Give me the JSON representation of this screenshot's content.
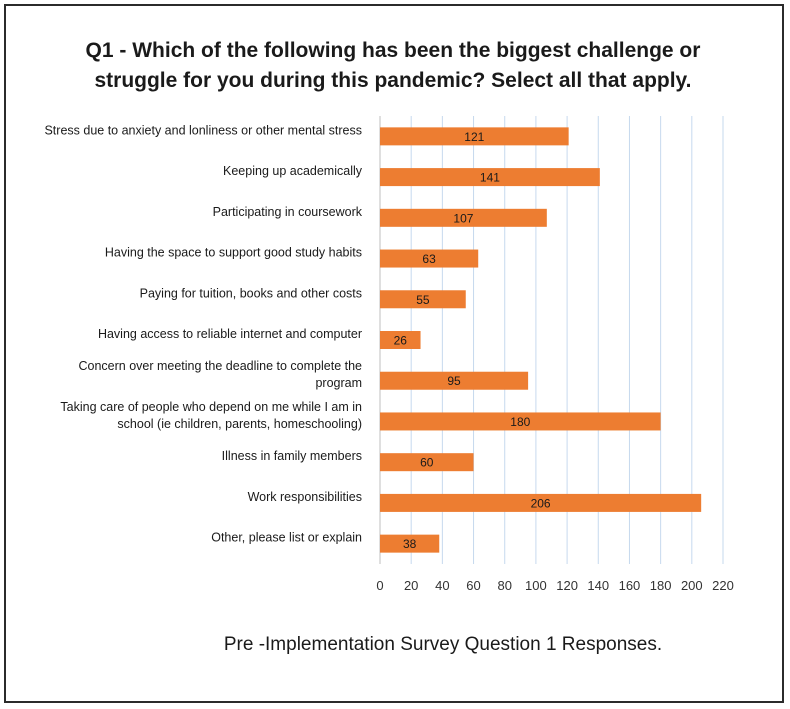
{
  "chart_data": {
    "type": "bar",
    "orientation": "horizontal",
    "title_lines": [
      "Q1 - Which of the following has been the biggest challenge or",
      "struggle for you during this pandemic? Select all that apply."
    ],
    "categories": [
      [
        "Stress due to anxiety and lonliness or other mental stress"
      ],
      [
        "Keeping up academically"
      ],
      [
        "Participating in coursework"
      ],
      [
        "Having the space to support good study habits"
      ],
      [
        "Paying for tuition, books and other costs"
      ],
      [
        "Having access to reliable internet and computer"
      ],
      [
        "Concern over meeting the deadline to complete the",
        "program"
      ],
      [
        "Taking care of people who depend on me while I am in",
        "school (ie children, parents, homeschooling)"
      ],
      [
        "Illness in family members"
      ],
      [
        "Work responsibilities"
      ],
      [
        "Other, please list or explain"
      ]
    ],
    "values": [
      121,
      141,
      107,
      63,
      55,
      26,
      95,
      180,
      60,
      206,
      38
    ],
    "data_labels": [
      "121",
      "141",
      "107",
      "63",
      "55",
      "26",
      "95",
      "180",
      "60",
      "206",
      "38"
    ],
    "xlim": [
      0,
      220
    ],
    "x_ticks": [
      "0",
      "20",
      "40",
      "60",
      "80",
      "100",
      "120",
      "140",
      "160",
      "180",
      "200",
      "220"
    ],
    "grid": "vertical",
    "legend": "none",
    "bar_color": "#ED7D31",
    "grid_color": "#C6D9EE",
    "caption": "Pre -Implementation Survey Question 1 Responses."
  }
}
